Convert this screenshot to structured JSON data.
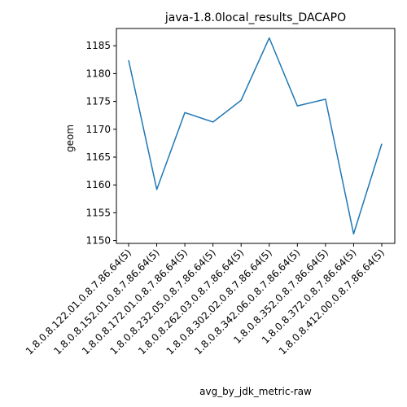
{
  "chart_data": {
    "type": "line",
    "title": "java-1.8.0local_results_DACAPO",
    "xlabel": "avg_by_jdk_metric-raw",
    "ylabel": "geom",
    "categories": [
      "1.8.0.8.122.01.0.8.7.86.64(5)",
      "1.8.0.8.152.01.0.8.7.86.64(5)",
      "1.8.0.8.172.01.0.8.7.86.64(5)",
      "1.8.0.8.232.05.0.8.7.86.64(5)",
      "1.8.0.8.262.03.0.8.7.86.64(5)",
      "1.8.0.8.302.02.0.8.7.86.64(5)",
      "1.8.0.8.342.06.0.8.7.86.64(5)",
      "1.8.0.8.352.0.8.7.86.64(5)",
      "1.8.0.8.372.0.8.7.86.64(5)",
      "1.8.0.8.412.00.0.8.7.86.64(5)"
    ],
    "series": [
      {
        "values": [
          1182.4,
          1159.2,
          1173.0,
          1171.3,
          1175.2,
          1186.4,
          1174.2,
          1175.4,
          1151.2,
          1167.4
        ]
      }
    ],
    "yticks": [
      1150,
      1155,
      1160,
      1165,
      1170,
      1175,
      1180,
      1185
    ],
    "ylim": [
      1149.5,
      1188.1
    ],
    "grid": false,
    "line_color": "#1f77b4"
  }
}
